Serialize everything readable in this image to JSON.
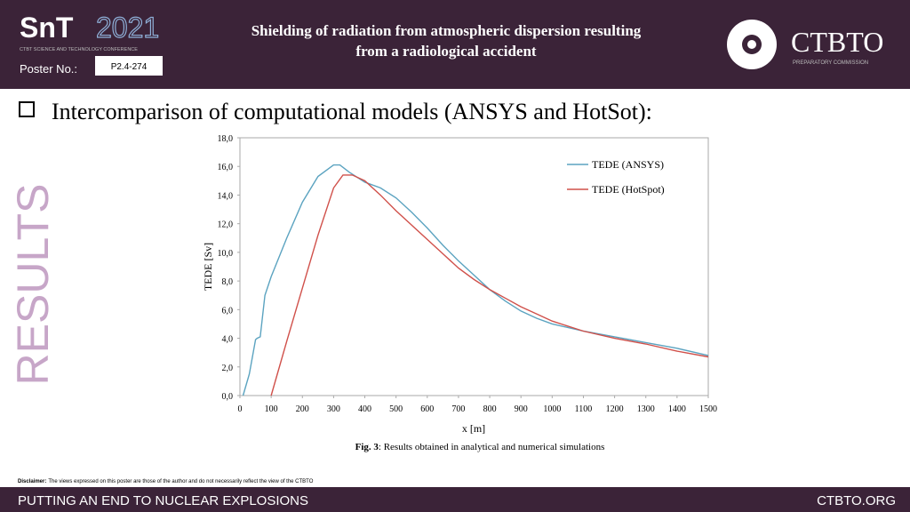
{
  "header": {
    "logo_left": "SnT",
    "logo_year": "2021",
    "logo_sub": "CTBT SCIENCE AND TECHNOLOGY CONFERENCE",
    "title_line1": "Shielding of radiation from atmospheric dispersion resulting",
    "title_line2": "from a radiological accident",
    "poster_label": "Poster No.:",
    "poster_no": "P2.4-274",
    "logo_right": "CTBTO",
    "logo_right_sub": "PREPARATORY COMMISSION"
  },
  "section": {
    "heading": "Intercomparison of computational models (ANSYS and HotSot):",
    "side_label": "RESULTS"
  },
  "chart_data": {
    "type": "line",
    "xlabel": "x [m]",
    "ylabel": "TEDE [Sv]",
    "xlim": [
      0,
      1500
    ],
    "xticks": [
      0,
      100,
      200,
      300,
      400,
      500,
      600,
      700,
      800,
      900,
      1000,
      1100,
      1200,
      1300,
      1400,
      1500
    ],
    "ylim": [
      0,
      18
    ],
    "yticks": [
      {
        "value": 0,
        "label": "0,0"
      },
      {
        "value": 2,
        "label": "2,0"
      },
      {
        "value": 4,
        "label": "4,0"
      },
      {
        "value": 6,
        "label": "6,0"
      },
      {
        "value": 8,
        "label": "8,0"
      },
      {
        "value": 10,
        "label": "10,0"
      },
      {
        "value": 12,
        "label": "12,0"
      },
      {
        "value": 14,
        "label": "14,0"
      },
      {
        "value": 16,
        "label": "16,0"
      },
      {
        "value": 18,
        "label": "18,0"
      }
    ],
    "grid": false,
    "legend": "upper right",
    "series": [
      {
        "name": "TEDE (ANSYS)",
        "color": "#5ba3c0",
        "x": [
          10,
          30,
          50,
          55,
          65,
          80,
          100,
          150,
          200,
          250,
          300,
          320,
          350,
          400,
          450,
          500,
          550,
          600,
          650,
          700,
          750,
          800,
          850,
          900,
          950,
          1000,
          1100,
          1200,
          1300,
          1400,
          1500
        ],
        "values": [
          0,
          1.5,
          3.9,
          4.0,
          4.1,
          7,
          8.3,
          11,
          13.5,
          15.3,
          16.1,
          16.1,
          15.6,
          14.9,
          14.5,
          13.8,
          12.8,
          11.7,
          10.5,
          9.4,
          8.4,
          7.4,
          6.6,
          5.9,
          5.4,
          5.0,
          4.5,
          4.1,
          3.7,
          3.3,
          2.8
        ]
      },
      {
        "name": "TEDE (HotSpot)",
        "color": "#d0504a",
        "x": [
          100,
          150,
          200,
          250,
          300,
          330,
          360,
          400,
          450,
          500,
          550,
          600,
          650,
          700,
          750,
          800,
          850,
          900,
          950,
          1000,
          1100,
          1200,
          1300,
          1400,
          1500
        ],
        "values": [
          0,
          3.8,
          7.5,
          11.2,
          14.5,
          15.4,
          15.4,
          15.0,
          14.0,
          12.9,
          11.9,
          10.9,
          9.9,
          8.9,
          8.1,
          7.4,
          6.8,
          6.2,
          5.7,
          5.2,
          4.5,
          4.0,
          3.6,
          3.1,
          2.7
        ]
      }
    ]
  },
  "caption": {
    "label": "Fig. 3",
    "text": ": Results obtained in analytical and numerical simulations"
  },
  "disclaimer": {
    "label": "Disclaimer:",
    "text": "The views expressed on this poster are those of the author and do not necessarily reflect the view of the CTBTO"
  },
  "footer": {
    "left": "PUTTING AN END TO NUCLEAR EXPLOSIONS",
    "right": "CTBTO.ORG"
  }
}
